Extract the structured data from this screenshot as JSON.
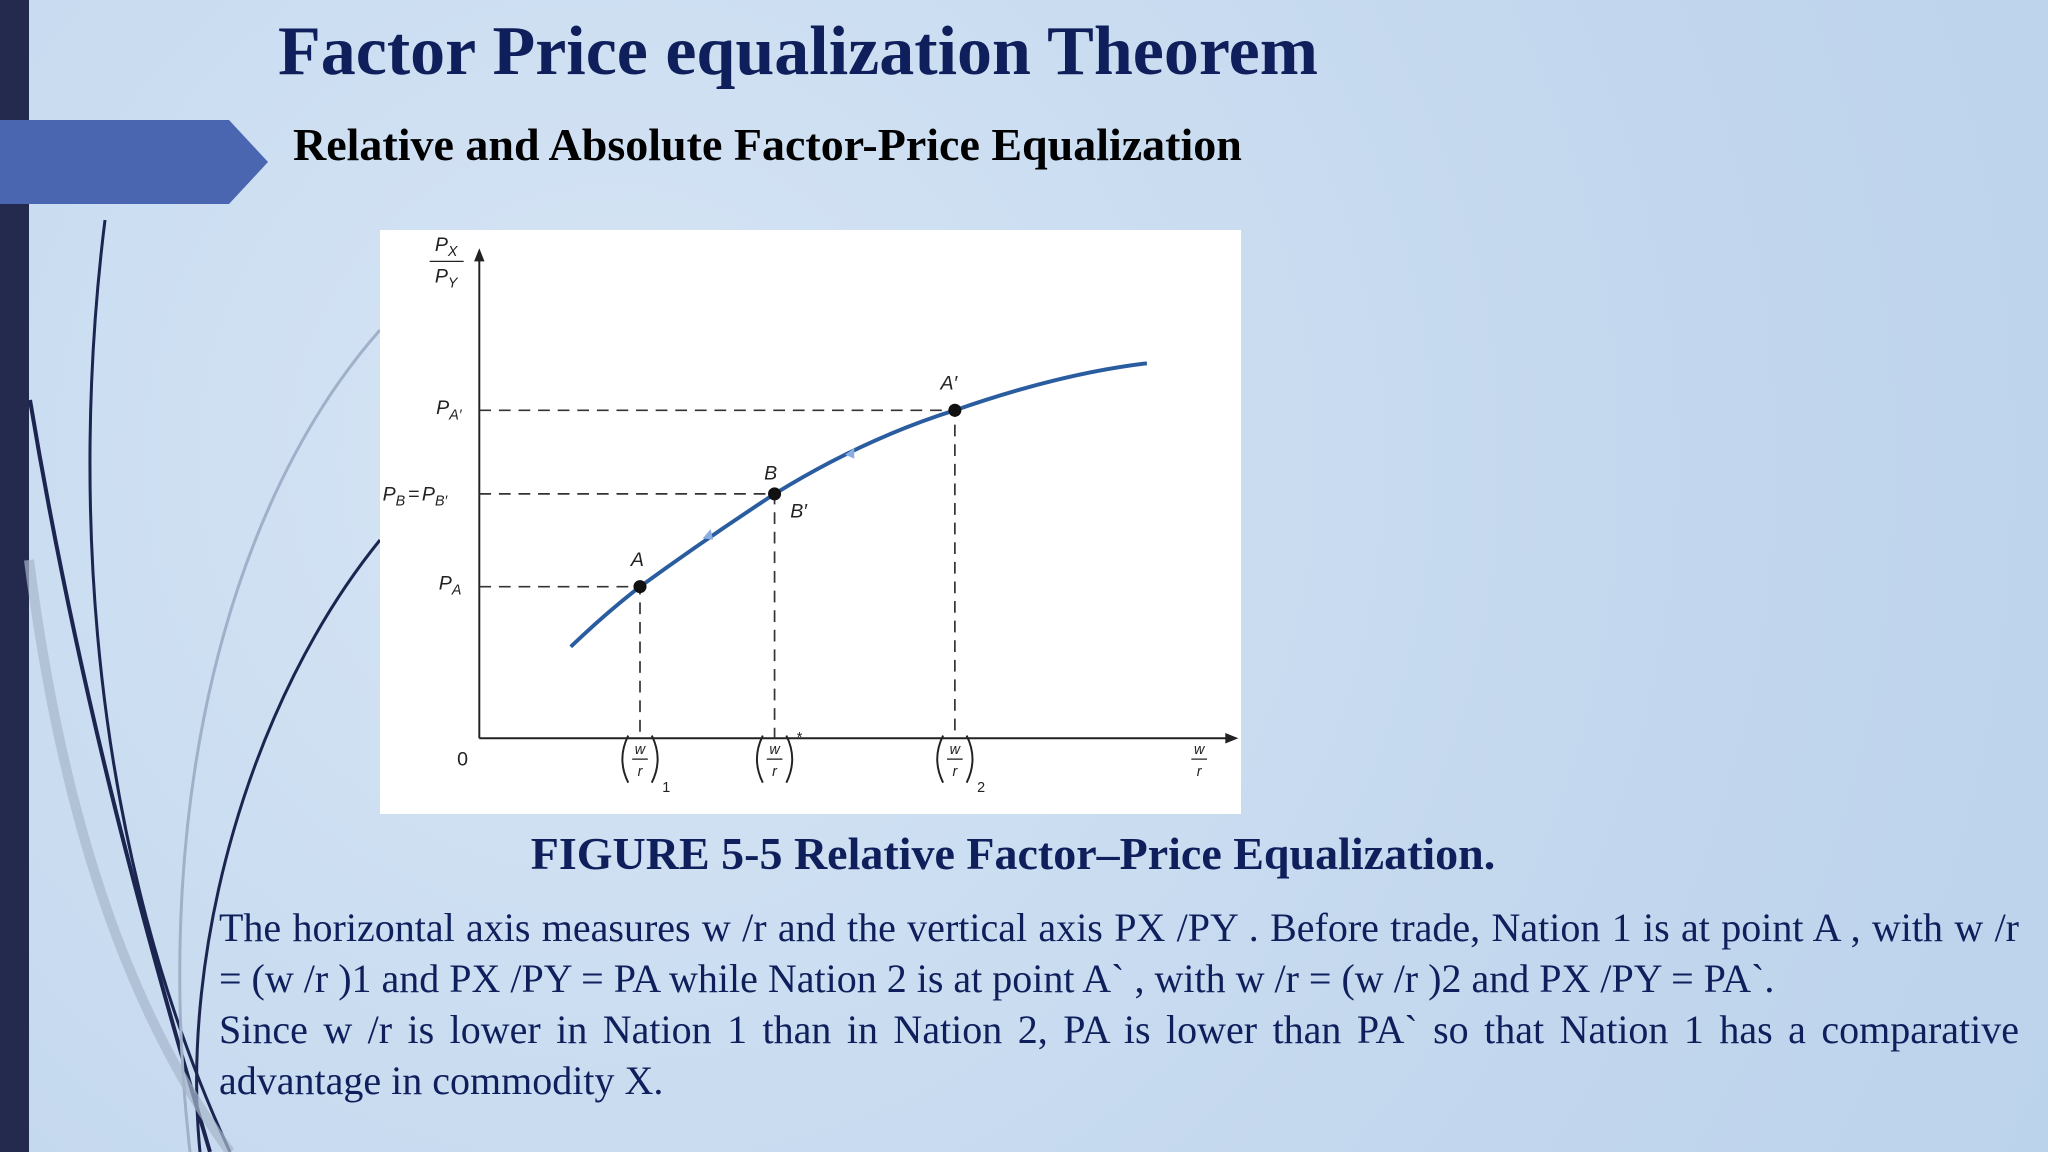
{
  "header": {
    "title": "Factor Price equalization Theorem",
    "subtitle": "Relative and Absolute Factor-Price Equalization"
  },
  "figure": {
    "y_label": {
      "num": "P",
      "num_sub": "X",
      "den": "P",
      "den_sub": "Y"
    },
    "y_ticks": [
      {
        "main": "P",
        "sub": "A′"
      },
      {
        "main": "P",
        "sub": "B",
        "eq": "=",
        "main2": "P",
        "sub2": "B′"
      },
      {
        "main": "P",
        "sub": "A"
      }
    ],
    "points": [
      "A",
      "B",
      "B′",
      "A′"
    ],
    "origin": "0",
    "x_ticks": [
      {
        "num": "w",
        "den": "r",
        "sub": "1"
      },
      {
        "num": "w",
        "den": "r",
        "sub": "*"
      },
      {
        "num": "w",
        "den": "r",
        "sub": "2"
      }
    ],
    "x_label": {
      "num": "w",
      "den": "r"
    }
  },
  "caption": "FIGURE 5-5 Relative Factor–Price Equalization.",
  "body": [
    "The  horizontal axis  measures w /r  and the  vertical axis  PX /PY . Before trade, Nation 1 is at point A , with w /r  = (w /r )1  and PX /PY   = PA  while  Nation 2 is at point A` , with  w /r  = (w /r )2  and PX /PY = PA`.",
    "Since w /r is lower in Nation 1 than  in Nation 2, PA  is lower than  PA` so that  Nation 1 has  a comparative advantage in commodity X."
  ]
}
